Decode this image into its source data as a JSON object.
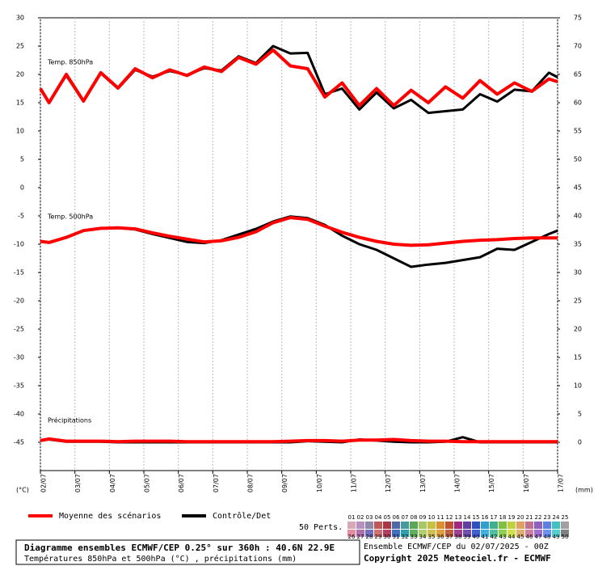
{
  "chart_data": {
    "type": "line",
    "panel_labels": [
      "Temp. 850hPa",
      "Temp. 500hPa",
      "Précipitations"
    ],
    "y_unit_label": "(°C)",
    "y2_unit_label": "(mm)",
    "x": [
      0,
      6,
      18,
      30,
      42,
      54,
      66,
      78,
      90,
      102,
      114,
      126,
      138,
      150,
      162,
      174,
      186,
      198,
      210,
      222,
      234,
      246,
      258,
      270,
      282,
      294,
      306,
      318,
      330,
      342,
      354,
      360
    ],
    "xlim": [
      0,
      360
    ],
    "xticks": [
      {
        "value": 0,
        "label": "02/07"
      },
      {
        "value": 24,
        "label": "03/07"
      },
      {
        "value": 48,
        "label": "04/07"
      },
      {
        "value": 72,
        "label": "05/07"
      },
      {
        "value": 96,
        "label": "06/07"
      },
      {
        "value": 120,
        "label": "07/07"
      },
      {
        "value": 144,
        "label": "08/07"
      },
      {
        "value": 168,
        "label": "09/07"
      },
      {
        "value": 192,
        "label": "10/07"
      },
      {
        "value": 216,
        "label": "11/07"
      },
      {
        "value": 240,
        "label": "12/07"
      },
      {
        "value": 264,
        "label": "13/07"
      },
      {
        "value": 288,
        "label": "14/07"
      },
      {
        "value": 312,
        "label": "15/07"
      },
      {
        "value": 336,
        "label": "16/07"
      },
      {
        "value": 360,
        "label": "17/07"
      }
    ],
    "ylim": [
      -50,
      30
    ],
    "yticks": [
      30,
      25,
      20,
      15,
      10,
      5,
      0,
      -5,
      -10,
      -15,
      -20,
      -25,
      -30,
      -35,
      -40,
      -45
    ],
    "y2lim": [
      -5,
      75
    ],
    "y2ticks": [
      75,
      70,
      65,
      60,
      55,
      50,
      45,
      40,
      35,
      30,
      25,
      20,
      15,
      10,
      5,
      0
    ],
    "grid": "x",
    "series": [
      {
        "name": "Moyenne des scénarios",
        "color": "#ff0000",
        "values": [
          17.5,
          15,
          20,
          15.3,
          20.3,
          17.6,
          21,
          19.4,
          20.8,
          19.8,
          21.3,
          20.5,
          23,
          21.8,
          24.3,
          21.5,
          21,
          16,
          18.5,
          14.5,
          17.5,
          14.5,
          17.2,
          15,
          17.8,
          15.8,
          18.9,
          16.5,
          18.5,
          17,
          19.2,
          18.7
        ]
      },
      {
        "name": "Contrôle/Det",
        "color": "#000000",
        "values": [
          17.4,
          15.1,
          19.8,
          15.2,
          20.2,
          17.5,
          20.8,
          19.6,
          20.6,
          19.9,
          21.1,
          20.7,
          23.2,
          22,
          25,
          23.7,
          23.8,
          16.5,
          17.5,
          13.8,
          16.8,
          14,
          15.5,
          13.2,
          13.5,
          13.8,
          16.5,
          15.2,
          17.3,
          17,
          20.3,
          19.5
        ]
      },
      {
        "name": "Moyenne des scénarios",
        "color": "#ff0000",
        "values": [
          -9.5,
          -9.7,
          -8.8,
          -7.6,
          -7.2,
          -7.1,
          -7.3,
          -8,
          -8.6,
          -9.1,
          -9.6,
          -9.4,
          -8.8,
          -7.8,
          -6.2,
          -5.3,
          -5.6,
          -6.8,
          -7.9,
          -8.8,
          -9.5,
          -10,
          -10.2,
          -10.1,
          -9.8,
          -9.5,
          -9.3,
          -9.2,
          -9,
          -8.9,
          -8.9,
          -8.9
        ]
      },
      {
        "name": "Contrôle/Det",
        "color": "#000000",
        "values": [
          -9.5,
          -9.7,
          -8.8,
          -7.6,
          -7.2,
          -7.1,
          -7.4,
          -8.2,
          -8.9,
          -9.6,
          -9.8,
          -9.3,
          -8.3,
          -7.3,
          -6,
          -5.1,
          -5.4,
          -6.6,
          -8.5,
          -10,
          -11,
          -12.5,
          -14,
          -13.6,
          -13.3,
          -12.8,
          -12.3,
          -10.8,
          -11,
          -9.6,
          -8.2,
          -7.6
        ]
      },
      {
        "name": "Moyenne des scénarios",
        "color": "#ff0000",
        "axis": "y2",
        "values": [
          0.3,
          0.6,
          0.2,
          0.2,
          0.2,
          0.1,
          0.2,
          0.2,
          0.2,
          0.1,
          0.1,
          0.1,
          0.1,
          0.1,
          0.1,
          0.2,
          0.3,
          0.3,
          0.2,
          0.4,
          0.4,
          0.5,
          0.3,
          0.2,
          0.2,
          0.1,
          0.1,
          0.1,
          0.1,
          0.1,
          0.1,
          0.1
        ]
      },
      {
        "name": "Contrôle/Det",
        "color": "#000000",
        "axis": "y2",
        "values": [
          0.3,
          0.5,
          0.1,
          0.1,
          0.1,
          0,
          0,
          0,
          0,
          0,
          0,
          0,
          0,
          0,
          0,
          0,
          0.2,
          0.1,
          0,
          0.5,
          0.3,
          0.1,
          0,
          0,
          0.1,
          0.9,
          0,
          0,
          0,
          0,
          0,
          0
        ]
      }
    ],
    "perturbations_label": "50 Perts.",
    "perturbation_members": [
      {
        "label": "01",
        "color": "#d8a8b8"
      },
      {
        "label": "02",
        "color": "#b890c0"
      },
      {
        "label": "03",
        "color": "#9088a8"
      },
      {
        "label": "04",
        "color": "#c05858"
      },
      {
        "label": "05",
        "color": "#a83848"
      },
      {
        "label": "06",
        "color": "#5068a8"
      },
      {
        "label": "07",
        "color": "#4898a0"
      },
      {
        "label": "08",
        "color": "#58a858"
      },
      {
        "label": "09",
        "color": "#a8c868"
      },
      {
        "label": "10",
        "color": "#c8c040"
      },
      {
        "label": "11",
        "color": "#d89030"
      },
      {
        "label": "12",
        "color": "#c05030"
      },
      {
        "label": "13",
        "color": "#a02880"
      },
      {
        "label": "14",
        "color": "#6040a0"
      },
      {
        "label": "15",
        "color": "#3050c0"
      },
      {
        "label": "16",
        "color": "#30a0d0"
      },
      {
        "label": "17",
        "color": "#40b090"
      },
      {
        "label": "18",
        "color": "#80c040"
      },
      {
        "label": "19",
        "color": "#c0d040"
      },
      {
        "label": "20",
        "color": "#e0a060"
      },
      {
        "label": "21",
        "color": "#c07090"
      },
      {
        "label": "22",
        "color": "#9060c0"
      },
      {
        "label": "23",
        "color": "#6080e0"
      },
      {
        "label": "24",
        "color": "#40c0c0"
      },
      {
        "label": "25",
        "color": "#a0a0a0"
      },
      {
        "label": "26",
        "color": "#e090a0"
      },
      {
        "label": "27",
        "color": "#b070b0"
      },
      {
        "label": "28",
        "color": "#7070c0"
      },
      {
        "label": "29",
        "color": "#d07070"
      },
      {
        "label": "30",
        "color": "#b04060"
      },
      {
        "label": "31",
        "color": "#4070c0"
      },
      {
        "label": "32",
        "color": "#30a0b0"
      },
      {
        "label": "33",
        "color": "#60b060"
      },
      {
        "label": "34",
        "color": "#b0d070"
      },
      {
        "label": "35",
        "color": "#d0c050"
      },
      {
        "label": "36",
        "color": "#e0a040"
      },
      {
        "label": "37",
        "color": "#c06040"
      },
      {
        "label": "38",
        "color": "#a04090"
      },
      {
        "label": "39",
        "color": "#7050b0"
      },
      {
        "label": "40",
        "color": "#4060d0"
      },
      {
        "label": "41",
        "color": "#40b0e0"
      },
      {
        "label": "42",
        "color": "#50c0a0"
      },
      {
        "label": "43",
        "color": "#90d050"
      },
      {
        "label": "44",
        "color": "#d0e050"
      },
      {
        "label": "45",
        "color": "#e0b070"
      },
      {
        "label": "46",
        "color": "#d080a0"
      },
      {
        "label": "47",
        "color": "#a070d0"
      },
      {
        "label": "48",
        "color": "#7090f0"
      },
      {
        "label": "49",
        "color": "#50d0d0"
      },
      {
        "label": "50",
        "color": "#808080"
      }
    ]
  },
  "footer": {
    "title": "Diagramme ensembles ECMWF/CEP 0.25° sur 360h : 40.6N 22.9E",
    "subtitle": "Températures 850hPa et 500hPa (°C) , précipitations (mm)",
    "run": "Ensemble ECMWF/CEP du 02/07/2025 - 00Z",
    "copyright": "Copyright 2025 Meteociel.fr - ECMWF"
  }
}
